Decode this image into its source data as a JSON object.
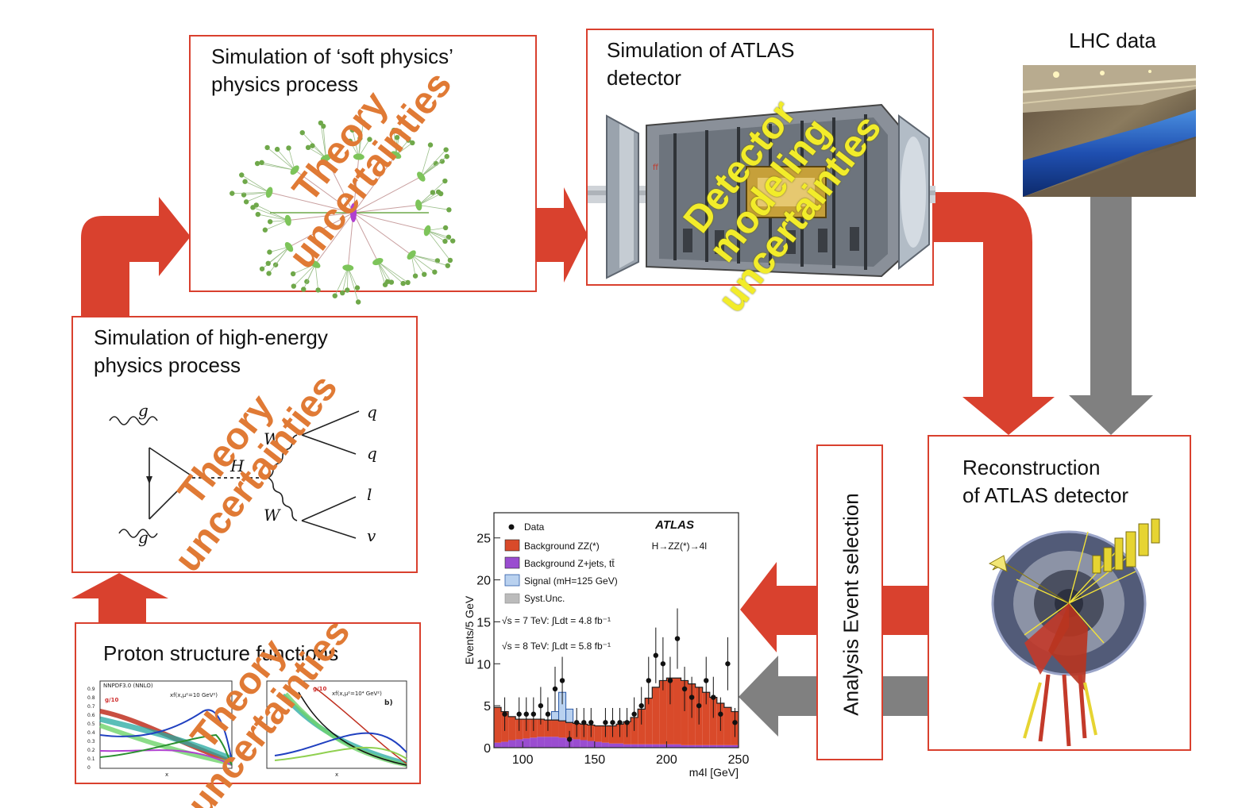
{
  "boxes": {
    "soft_physics": {
      "title_line1": "Simulation of ‘soft physics’",
      "title_line2": "physics process"
    },
    "atlas_sim": {
      "title_line1": "Simulation of ATLAS",
      "title_line2": "detector"
    },
    "lhc": {
      "title": "LHC data"
    },
    "high_energy": {
      "title_line1": "Simulation of high-energy",
      "title_line2": "physics process"
    },
    "proton": {
      "title": "Proton structure functions"
    },
    "reconstruction": {
      "title_line1": "Reconstruction",
      "title_line2": "of ATLAS detector"
    },
    "analysis": {
      "title": "Analysis Event selection"
    }
  },
  "stamps": {
    "theory": {
      "line1": "Theory",
      "line2": "uncertainties"
    },
    "detector": {
      "line1": "Detector",
      "line2": "modeling",
      "line3": "uncertainties"
    }
  },
  "feynman": {
    "g_top": "g",
    "g_bottom": "g",
    "H": "H",
    "W_top": "W",
    "W_bottom": "W",
    "q1": "q",
    "q2": "q",
    "l": "l",
    "v": "v"
  },
  "pdf_plots": {
    "left_header": "NNPDF3.0 (NNLO)",
    "left_scale": "xf(x,μ²=10 GeV²)",
    "right_scale": "xf(x,μ²=10⁴ GeV²)",
    "right_tag": "b)",
    "g10_left": "g/10",
    "g10_right": "g/10",
    "x_label": "x",
    "y_ticks": [
      "0.9",
      "0.8",
      "0.7",
      "0.6",
      "0.5",
      "0.4",
      "0.3",
      "0.2",
      "0.1",
      "0"
    ]
  },
  "colors": {
    "flow_red": "#d9412e",
    "flow_gray": "#808080",
    "box_border": "#d9402e",
    "theory_orange": "#e07a35",
    "detector_yellow": "#f2ec2a"
  },
  "chart_data": {
    "type": "bar",
    "ylabel": "Events/5 GeV",
    "xlabel": "m4l [GeV]",
    "xlim": [
      80,
      250
    ],
    "ylim": [
      0,
      28
    ],
    "x_ticks": [
      100,
      150,
      200,
      250
    ],
    "y_ticks": [
      0,
      5,
      10,
      15,
      20,
      25
    ],
    "atlas_label": "ATLAS",
    "process_label": "H→ZZ(*)→4l",
    "lumi_7": "√s = 7 TeV: ∫Ldt = 4.8 fb⁻¹",
    "lumi_8": "√s = 8 TeV: ∫Ldt = 5.8 fb⁻¹",
    "legend": {
      "data": "Data",
      "bkg_zz": "Background ZZ(*)",
      "bkg_zjets": "Background Z+jets, tt̄",
      "signal": "Signal (mH=125 GeV)",
      "syst": "Syst.Unc."
    },
    "bin_width": 5,
    "bin_edges_start": 80,
    "bkg_zz": [
      4.2,
      3.6,
      2.8,
      2.4,
      2.3,
      2.2,
      2.1,
      2.0,
      2.0,
      2.0,
      1.9,
      1.9,
      1.9,
      1.9,
      1.9,
      2.0,
      2.1,
      2.3,
      2.7,
      3.2,
      4.2,
      5.5,
      6.8,
      7.6,
      7.9,
      7.9,
      7.7,
      7.3,
      6.9,
      6.3,
      5.7,
      5.0,
      4.5,
      4.0
    ],
    "bkg_zjets": [
      0.6,
      0.7,
      0.9,
      1.0,
      1.1,
      1.2,
      1.3,
      1.3,
      1.3,
      1.2,
      1.1,
      1.0,
      0.9,
      0.8,
      0.7,
      0.6,
      0.5,
      0.5,
      0.4,
      0.4,
      0.4,
      0.4,
      0.4,
      0.4,
      0.4,
      0.4,
      0.3,
      0.3,
      0.3,
      0.3,
      0.3,
      0.3,
      0.3,
      0.3
    ],
    "signal": [
      0,
      0,
      0,
      0,
      0,
      0,
      0,
      0,
      1.0,
      3.4,
      1.6,
      0,
      0,
      0,
      0,
      0,
      0,
      0,
      0,
      0,
      0,
      0,
      0,
      0,
      0,
      0,
      0,
      0,
      0,
      0,
      0,
      0,
      0,
      0
    ],
    "data_points": [
      {
        "x": 87.5,
        "y": 4
      },
      {
        "x": 97.5,
        "y": 4
      },
      {
        "x": 102.5,
        "y": 4
      },
      {
        "x": 107.5,
        "y": 4
      },
      {
        "x": 112.5,
        "y": 5
      },
      {
        "x": 117.5,
        "y": 4
      },
      {
        "x": 122.5,
        "y": 7
      },
      {
        "x": 127.5,
        "y": 8
      },
      {
        "x": 132.5,
        "y": 1
      },
      {
        "x": 137.5,
        "y": 3
      },
      {
        "x": 142.5,
        "y": 3
      },
      {
        "x": 147.5,
        "y": 3
      },
      {
        "x": 157.5,
        "y": 3
      },
      {
        "x": 162.5,
        "y": 3
      },
      {
        "x": 167.5,
        "y": 3
      },
      {
        "x": 172.5,
        "y": 3
      },
      {
        "x": 177.5,
        "y": 4
      },
      {
        "x": 182.5,
        "y": 5
      },
      {
        "x": 187.5,
        "y": 8
      },
      {
        "x": 192.5,
        "y": 11
      },
      {
        "x": 197.5,
        "y": 10
      },
      {
        "x": 202.5,
        "y": 8
      },
      {
        "x": 207.5,
        "y": 13
      },
      {
        "x": 212.5,
        "y": 7
      },
      {
        "x": 217.5,
        "y": 6
      },
      {
        "x": 222.5,
        "y": 5
      },
      {
        "x": 227.5,
        "y": 8
      },
      {
        "x": 232.5,
        "y": 6
      },
      {
        "x": 237.5,
        "y": 4
      },
      {
        "x": 242.5,
        "y": 10
      },
      {
        "x": 247.5,
        "y": 3
      }
    ]
  }
}
